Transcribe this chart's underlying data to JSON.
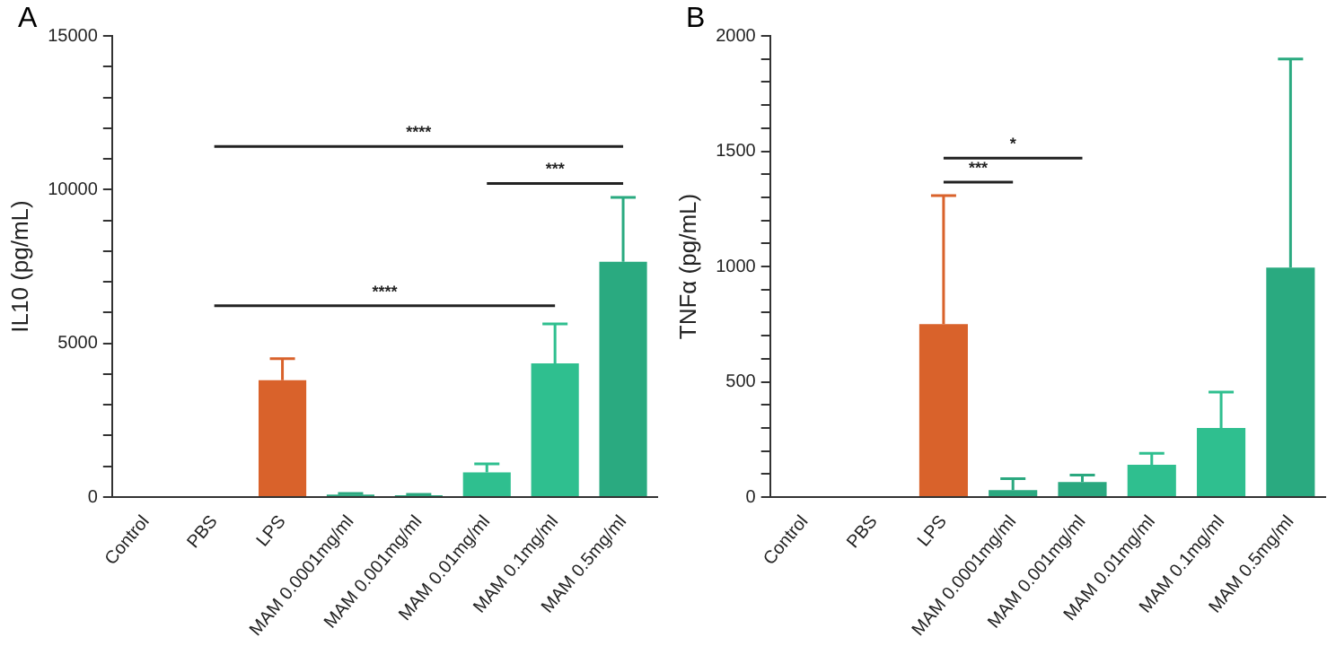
{
  "chart_data": [
    {
      "type": "bar",
      "title": "A",
      "ylabel": "IL10 (pg/mL)",
      "categories": [
        "Control",
        "PBS",
        "LPS",
        "MAM 0.0001mg/ml",
        "MAM 0.001mg/ml",
        "MAM 0.01mg/ml",
        "MAM 0.1mg/ml",
        "MAM 0.5mg/ml"
      ],
      "values": [
        0,
        null,
        3800,
        80,
        60,
        800,
        4350,
        7650
      ],
      "errors": [
        null,
        null,
        [
          3800,
          4500
        ],
        [
          80,
          120
        ],
        [
          60,
          90
        ],
        [
          800,
          1080
        ],
        [
          4350,
          5630
        ],
        [
          7650,
          9750
        ]
      ],
      "colors": [
        "#9a9a9a",
        "#f0b0a0",
        "#d9622b",
        "#2aa87f",
        "#2aa87f",
        "#2fbf8f",
        "#2fbf8f",
        "#2aaa80"
      ],
      "ylim": [
        0,
        15000
      ],
      "yticks": [
        0,
        {
          "value": 1000,
          "label": null
        },
        {
          "value": 2000,
          "label": null
        },
        {
          "value": 3000,
          "label": null
        },
        {
          "value": 4000,
          "label": null
        },
        5000,
        {
          "value": 6000,
          "label": null
        },
        {
          "value": 7000,
          "label": null
        },
        {
          "value": 8000,
          "label": null
        },
        {
          "value": 9000,
          "label": null
        },
        10000,
        {
          "value": 11000,
          "label": null
        },
        {
          "value": 12000,
          "label": null
        },
        {
          "value": 13000,
          "label": null
        },
        {
          "value": 14000,
          "label": null
        },
        15000
      ],
      "annotations": [
        "****",
        "***",
        "****"
      ],
      "grid": false,
      "legend": false
    },
    {
      "type": "bar",
      "title": "B",
      "ylabel": "TNFα (pg/mL)",
      "categories": [
        "Control",
        "PBS",
        "LPS",
        "MAM 0.0001mg/ml",
        "MAM 0.001mg/ml",
        "MAM 0.01mg/ml",
        "MAM 0.1mg/ml",
        "MAM 0.5mg/ml"
      ],
      "values": [
        0,
        null,
        750,
        30,
        65,
        140,
        300,
        995
      ],
      "errors": [
        null,
        null,
        [
          750,
          1307
        ],
        [
          30,
          80
        ],
        [
          65,
          95
        ],
        [
          140,
          190
        ],
        [
          300,
          455
        ],
        [
          995,
          1900
        ]
      ],
      "colors": [
        "#9a9a9a",
        "#f0b0a0",
        "#d9622b",
        "#2aa87f",
        "#2aa87f",
        "#2fbf8f",
        "#2fbf8f",
        "#2aaa80"
      ],
      "ylim": [
        0,
        2000
      ],
      "yticks": [
        0,
        {
          "value": 100,
          "label": null
        },
        {
          "value": 200,
          "label": null
        },
        {
          "value": 300,
          "label": null
        },
        {
          "value": 400,
          "label": null
        },
        500,
        {
          "value": 600,
          "label": null
        },
        {
          "value": 700,
          "label": null
        },
        {
          "value": 800,
          "label": null
        },
        {
          "value": 900,
          "label": null
        },
        1000,
        {
          "value": 1100,
          "label": null
        },
        {
          "value": 1200,
          "label": null
        },
        {
          "value": 1300,
          "label": null
        },
        {
          "value": 1400,
          "label": null
        },
        1500,
        {
          "value": 1600,
          "label": null
        },
        {
          "value": 1700,
          "label": null
        },
        {
          "value": 1800,
          "label": null
        },
        {
          "value": 1900,
          "label": null
        },
        2000
      ],
      "annotations": [
        "*",
        "***"
      ],
      "grid": false,
      "legend": false
    }
  ]
}
